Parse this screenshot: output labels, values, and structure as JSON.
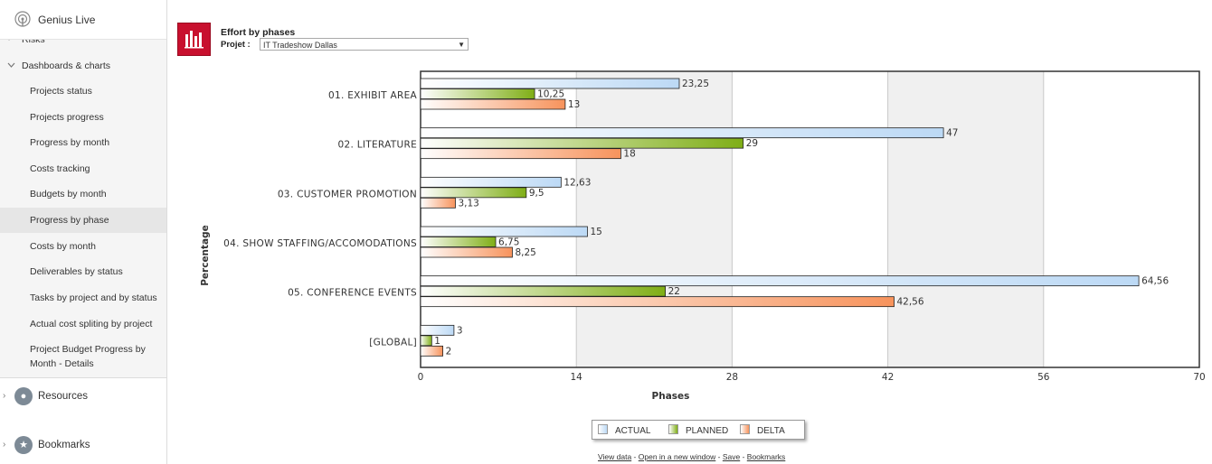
{
  "app": {
    "title": "Genius Live"
  },
  "sidebar": {
    "risks": "Risks",
    "section": "Dashboards & charts",
    "items": [
      "Projects status",
      "Projects progress",
      "Progress by month",
      "Costs tracking",
      "Budgets by month",
      "Progress by phase",
      "Costs by month",
      "Deliverables by status",
      "Tasks by project and by status",
      "Actual cost spliting by project",
      "Project Budget Progress by",
      "Month - Details"
    ],
    "resources": "Resources",
    "bookmarks": "Bookmarks"
  },
  "header": {
    "chart_title": "Effort by phases",
    "project_label": "Projet :",
    "project_value": "IT Tradeshow Dallas"
  },
  "footer": {
    "view_data": "View data",
    "open_new": "Open in a new window",
    "save": "Save",
    "bookmarks": "Bookmarks",
    "separator": " - "
  },
  "colors": {
    "actual": "#bcd9f5",
    "planned": "#7fae16",
    "delta": "#f7935c"
  },
  "chart_data": {
    "type": "bar",
    "orientation": "horizontal",
    "categories": [
      "01. EXHIBIT AREA",
      "02. LITERATURE",
      "03. CUSTOMER PROMOTION",
      "04. SHOW STAFFING/ACCOMODATIONS",
      "05. CONFERENCE EVENTS",
      "[GLOBAL]"
    ],
    "series": [
      {
        "name": "ACTUAL",
        "values": [
          23.25,
          47,
          12.63,
          15,
          64.56,
          3
        ],
        "labels": [
          "23,25",
          "47",
          "12,63",
          "15",
          "64,56",
          "3"
        ]
      },
      {
        "name": "PLANNED",
        "values": [
          10.25,
          29,
          9.5,
          6.75,
          22,
          1
        ],
        "labels": [
          "10,25",
          "29",
          "9,5",
          "6,75",
          "22",
          "1"
        ]
      },
      {
        "name": "DELTA",
        "values": [
          13,
          18,
          3.13,
          8.25,
          42.56,
          2
        ],
        "labels": [
          "13",
          "18",
          "3,13",
          "8,25",
          "42,56",
          "2"
        ]
      }
    ],
    "xlabel": "Phases",
    "ylabel": "Percentage",
    "xlim": [
      0,
      70
    ],
    "ticks": [
      "0",
      "14",
      "28",
      "42",
      "56",
      "70"
    ],
    "legend": "bottom"
  }
}
